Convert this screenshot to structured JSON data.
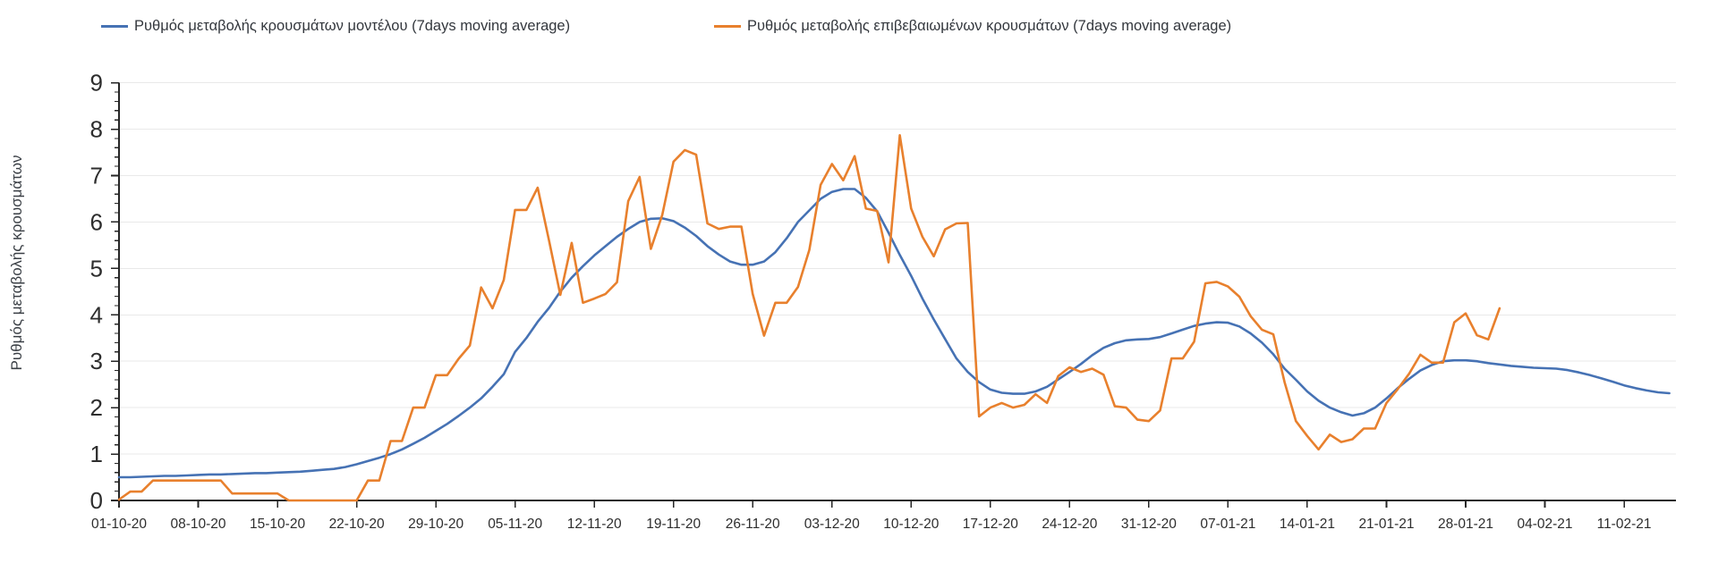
{
  "page": {
    "background": "#ffffff"
  },
  "chart_data": {
    "type": "line",
    "title": "",
    "ylabel": "Ρυθμός μεταβολής κρουσμάτων",
    "xlabel": "",
    "ylim": [
      0,
      9
    ],
    "yticks": [
      0,
      1,
      2,
      3,
      4,
      5,
      6,
      7,
      8,
      9
    ],
    "y_minor_tick_step": 0.2,
    "grid": "horizontal-only",
    "gridline_color": "#e9e9e9",
    "axis_color": "#262626",
    "tick_label_color": "#2e2e2e",
    "legend_position": "top",
    "x_start_date": "01-10-20",
    "x_tick_interval_days": 7,
    "x_tick_labels": [
      "01-10-20",
      "08-10-20",
      "15-10-20",
      "22-10-20",
      "29-10-20",
      "05-11-20",
      "12-11-20",
      "19-11-20",
      "26-11-20",
      "03-12-20",
      "10-12-20",
      "17-12-20",
      "24-12-20",
      "31-12-20",
      "07-01-21",
      "14-01-21",
      "21-01-21",
      "28-01-21",
      "04-02-21",
      "11-02-21"
    ],
    "series": [
      {
        "name": "Ρυθμός μεταβολής κρουσμάτων μοντέλου (7days moving average)",
        "color": "#4672b4",
        "cadence": "daily",
        "start_date": "01-10-20",
        "end_date": "15-02-21",
        "values": [
          0.5,
          0.5,
          0.51,
          0.52,
          0.53,
          0.53,
          0.54,
          0.55,
          0.56,
          0.56,
          0.57,
          0.58,
          0.59,
          0.59,
          0.6,
          0.61,
          0.62,
          0.64,
          0.66,
          0.68,
          0.72,
          0.78,
          0.85,
          0.92,
          1.0,
          1.1,
          1.22,
          1.35,
          1.5,
          1.65,
          1.82,
          2.0,
          2.2,
          2.45,
          2.72,
          3.2,
          3.5,
          3.85,
          4.15,
          4.5,
          4.8,
          5.05,
          5.28,
          5.48,
          5.68,
          5.85,
          6.0,
          6.07,
          6.08,
          6.02,
          5.88,
          5.7,
          5.48,
          5.3,
          5.15,
          5.08,
          5.08,
          5.15,
          5.35,
          5.65,
          6.0,
          6.25,
          6.5,
          6.65,
          6.71,
          6.71,
          6.52,
          6.23,
          5.77,
          5.29,
          4.84,
          4.35,
          3.9,
          3.48,
          3.06,
          2.77,
          2.55,
          2.39,
          2.32,
          2.3,
          2.3,
          2.35,
          2.45,
          2.61,
          2.77,
          2.94,
          3.13,
          3.29,
          3.39,
          3.45,
          3.47,
          3.48,
          3.52,
          3.6,
          3.68,
          3.76,
          3.81,
          3.84,
          3.83,
          3.75,
          3.6,
          3.4,
          3.15,
          2.84,
          2.6,
          2.35,
          2.15,
          2.0,
          1.9,
          1.83,
          1.88,
          2.0,
          2.2,
          2.42,
          2.62,
          2.8,
          2.92,
          3.0,
          3.02,
          3.02,
          3.0,
          2.96,
          2.93,
          2.9,
          2.88,
          2.86,
          2.85,
          2.84,
          2.81,
          2.76,
          2.7,
          2.63,
          2.56,
          2.48,
          2.42,
          2.37,
          2.33,
          2.31
        ]
      },
      {
        "name": "Ρυθμός μεταβολής επιβεβαιωμένων κρουσμάτων (7days moving average)",
        "color": "#e8802d",
        "cadence": "daily",
        "start_date": "01-10-20",
        "end_date": "31-01-21",
        "values": [
          0.02,
          0.19,
          0.19,
          0.43,
          0.43,
          0.43,
          0.43,
          0.43,
          0.43,
          0.43,
          0.15,
          0.15,
          0.15,
          0.15,
          0.15,
          0.0,
          0.0,
          0.0,
          0.0,
          0.0,
          0.0,
          0.0,
          0.43,
          0.43,
          1.28,
          1.28,
          2.0,
          2.0,
          2.7,
          2.7,
          3.05,
          3.34,
          4.59,
          4.14,
          4.75,
          6.26,
          6.26,
          6.74,
          5.6,
          4.43,
          5.55,
          4.26,
          4.35,
          4.45,
          4.7,
          6.45,
          6.97,
          5.42,
          6.15,
          7.3,
          7.55,
          7.45,
          5.97,
          5.85,
          5.9,
          5.9,
          4.45,
          3.55,
          4.26,
          4.26,
          4.6,
          5.4,
          6.8,
          7.25,
          6.9,
          7.42,
          6.29,
          6.24,
          5.13,
          7.87,
          6.29,
          5.68,
          5.26,
          5.84,
          5.97,
          5.98,
          1.81,
          2.0,
          2.1,
          2.0,
          2.06,
          2.29,
          2.1,
          2.68,
          2.87,
          2.77,
          2.84,
          2.71,
          2.03,
          2.0,
          1.74,
          1.71,
          1.94,
          3.06,
          3.06,
          3.42,
          4.68,
          4.71,
          4.61,
          4.39,
          3.97,
          3.68,
          3.58,
          2.55,
          1.71,
          1.39,
          1.1,
          1.42,
          1.26,
          1.32,
          1.55,
          1.55,
          2.1,
          2.4,
          2.73,
          3.14,
          2.97,
          2.97,
          3.84,
          4.03,
          3.56,
          3.47,
          4.14
        ]
      }
    ]
  }
}
